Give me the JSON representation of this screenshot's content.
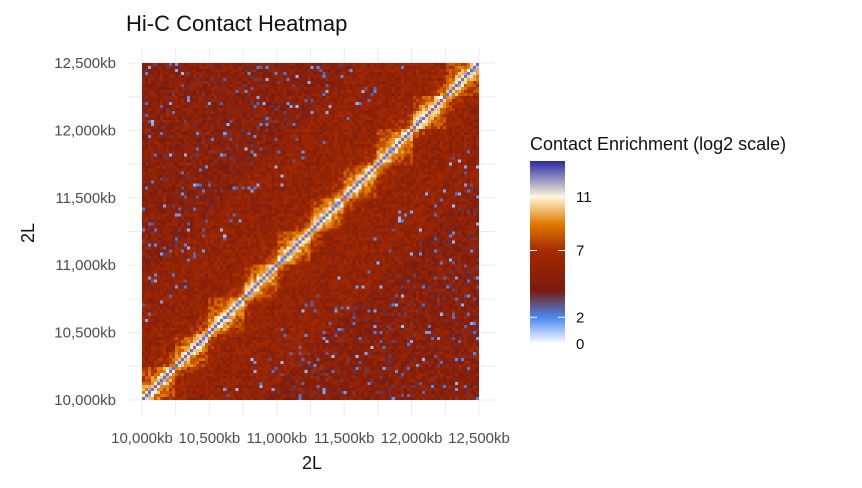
{
  "chart_data": {
    "type": "heatmap",
    "title": "Hi-C Contact Heatmap",
    "xlabel": "2L",
    "ylabel": "2L",
    "x_ticks": [
      "10,000kb",
      "10,500kb",
      "11,000kb",
      "11,500kb",
      "12,000kb",
      "12,500kb"
    ],
    "y_ticks": [
      "10,000kb",
      "10,500kb",
      "11,000kb",
      "11,500kb",
      "12,000kb",
      "12,500kb"
    ],
    "tick_values_kb": [
      10000,
      10500,
      11000,
      11500,
      12000,
      12500
    ],
    "xlim_kb": [
      10000,
      12500
    ],
    "ylim_kb": [
      10000,
      12500
    ],
    "legend": {
      "title": "Contact Enrichment (log2 scale)",
      "ticks": [
        "0",
        "2",
        "7",
        "11"
      ],
      "tick_values": [
        0,
        2,
        7,
        11
      ],
      "range": [
        0,
        13.7
      ],
      "placement": "right"
    },
    "color_scale": [
      {
        "value": 0,
        "color": "#ffffff"
      },
      {
        "value": 2,
        "color": "#4a86f2"
      },
      {
        "value": 4,
        "color": "#7a1b0e"
      },
      {
        "value": 7,
        "color": "#a52a00"
      },
      {
        "value": 9,
        "color": "#e07b00"
      },
      {
        "value": 11,
        "color": "#fff6d8"
      },
      {
        "value": 13.7,
        "color": "#2b2aa6"
      }
    ],
    "grid": true,
    "diagonal_signal": "high",
    "domain_boundaries_kb": [
      10250,
      10500,
      10750,
      11000,
      11250,
      11500,
      11750,
      12000,
      12250,
      12500
    ]
  }
}
